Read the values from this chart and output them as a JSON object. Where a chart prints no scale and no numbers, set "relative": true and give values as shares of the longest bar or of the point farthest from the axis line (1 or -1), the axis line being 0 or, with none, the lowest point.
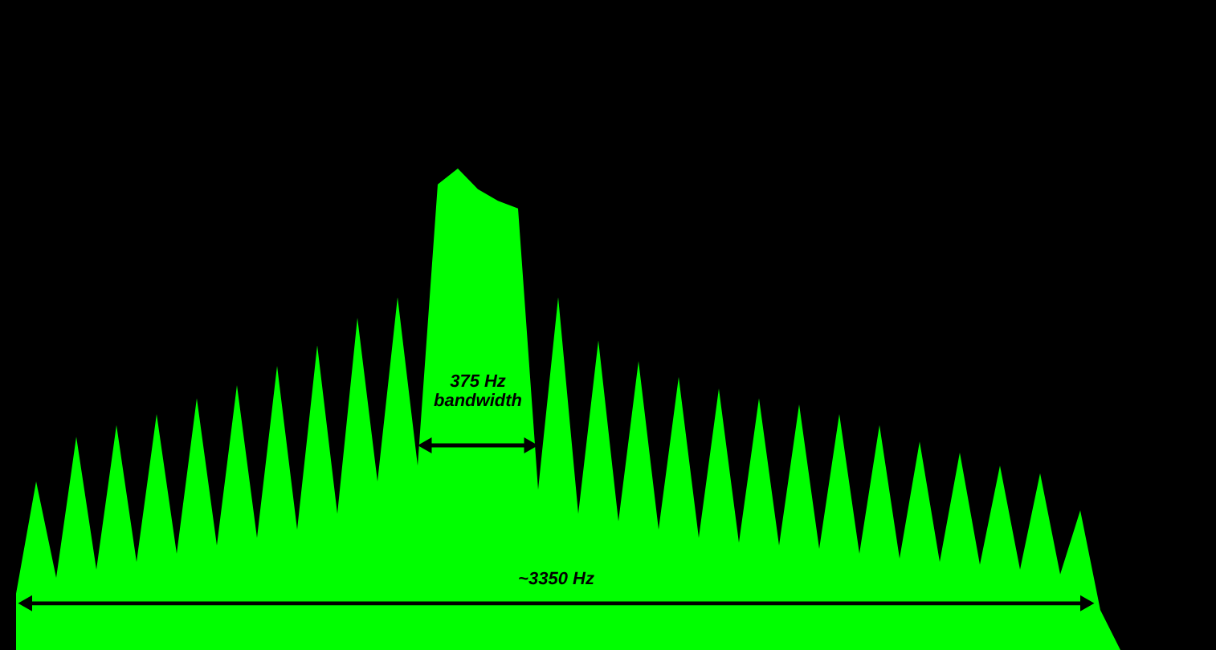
{
  "chart_data": {
    "type": "area",
    "relative": true,
    "categories": [
      null,
      null,
      null,
      null,
      null,
      null,
      null,
      null,
      null,
      null,
      null,
      null,
      null,
      null,
      null,
      null,
      null,
      null,
      null,
      null,
      null,
      null,
      null,
      null,
      null,
      null,
      null,
      null,
      null,
      null,
      null,
      null,
      null,
      null,
      null,
      null,
      null,
      null,
      null,
      null,
      null,
      null,
      null,
      null,
      null,
      null,
      null,
      null,
      null,
      null,
      null,
      null,
      null,
      null,
      null,
      null,
      null,
      null,
      null,
      null
    ],
    "series": [
      {
        "color": "#00ff00",
        "values": [
          0.117,
          0.35,
          0.15,
          0.443,
          0.167,
          0.467,
          0.183,
          0.49,
          0.2,
          0.523,
          0.217,
          0.55,
          0.233,
          0.59,
          0.25,
          0.633,
          0.283,
          0.69,
          0.35,
          0.733,
          0.383,
          0.967,
          1,
          0.957,
          0.933,
          0.917,
          0.333,
          0.733,
          0.283,
          0.643,
          0.267,
          0.6,
          0.25,
          0.567,
          0.233,
          0.543,
          0.223,
          0.523,
          0.217,
          0.51,
          0.21,
          0.49,
          0.2,
          0.467,
          0.19,
          0.433,
          0.183,
          0.41,
          0.177,
          0.383,
          0.167,
          0.367,
          0.157,
          0.29,
          0.083,
          0,
          0,
          0,
          0,
          0
        ]
      }
    ],
    "annotations": [
      "375 Hz\nbandwidth",
      "~3350 Hz"
    ],
    "grid": false
  }
}
